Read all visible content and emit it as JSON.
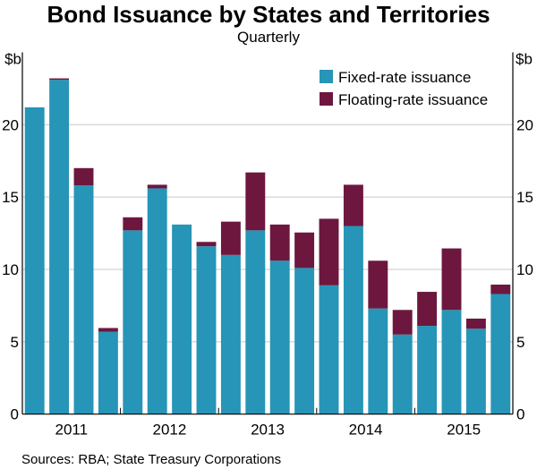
{
  "chart_data": {
    "type": "bar",
    "stacked": true,
    "title": "Bond Issuance by States and Territories",
    "subtitle": "Quarterly",
    "ylabel": "$b",
    "ylim": [
      0,
      25
    ],
    "yticks": [
      0,
      5,
      10,
      15,
      20
    ],
    "grid": true,
    "legend_position": "top-right",
    "year_labels": [
      "2011",
      "2012",
      "2013",
      "2014",
      "2015"
    ],
    "categories": [
      "2011 Q1",
      "2011 Q2",
      "2011 Q3",
      "2011 Q4",
      "2012 Q1",
      "2012 Q2",
      "2012 Q3",
      "2012 Q4",
      "2013 Q1",
      "2013 Q2",
      "2013 Q3",
      "2013 Q4",
      "2014 Q1",
      "2014 Q2",
      "2014 Q3",
      "2014 Q4",
      "2015 Q1",
      "2015 Q2",
      "2015 Q3",
      "2015 Q4"
    ],
    "series": [
      {
        "name": "Fixed-rate issuance",
        "color": "#2695b7",
        "values": [
          21.2,
          23.1,
          15.8,
          5.7,
          12.7,
          15.6,
          13.1,
          11.6,
          11.0,
          12.7,
          10.6,
          10.1,
          8.9,
          13.0,
          7.3,
          5.5,
          6.1,
          7.2,
          5.9,
          8.3
        ]
      },
      {
        "name": "Floating-rate issuance",
        "color": "#6d173e",
        "values": [
          0,
          0.1,
          1.2,
          0.25,
          0.9,
          0.25,
          0,
          0.3,
          2.3,
          4.0,
          2.5,
          2.45,
          4.6,
          2.85,
          3.3,
          1.7,
          2.35,
          4.25,
          0.7,
          0.65
        ]
      }
    ]
  },
  "source": "Sources:   RBA; State Treasury Corporations"
}
